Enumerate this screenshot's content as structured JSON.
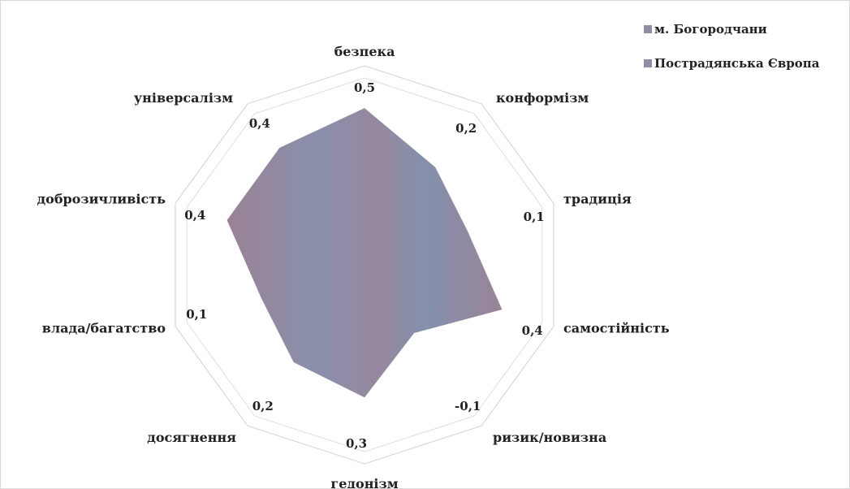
{
  "chart_data": {
    "type": "radar",
    "categories": [
      "безпека",
      "конформізм",
      "традиція",
      "самостійність",
      "ризик/новизна",
      "гедонізм",
      "досягнення",
      "влада/багатство",
      "доброзичливість",
      "універсалізм"
    ],
    "value_labels": [
      "0,5",
      "0,2",
      "0,1",
      "0,4",
      "-0,1",
      "0,3",
      "0,2",
      "0,1",
      "0,4",
      "0,4"
    ],
    "series": [
      {
        "name": "м. Богородчани",
        "color": "#8e8ea8",
        "values": [
          0.5,
          0.2,
          0.1,
          0.4,
          -0.1,
          0.3,
          0.2,
          0.1,
          0.4,
          0.4
        ]
      },
      {
        "name": "Пострадянська Європа",
        "color": "#8e8ea8",
        "values": [
          0.5,
          0.2,
          0.1,
          0.4,
          -0.1,
          0.3,
          0.2,
          0.1,
          0.4,
          0.4
        ]
      }
    ],
    "radial_range": [
      -0.8,
      0.75
    ],
    "gridlines": "outer decagon",
    "legend_position": "top-right"
  }
}
